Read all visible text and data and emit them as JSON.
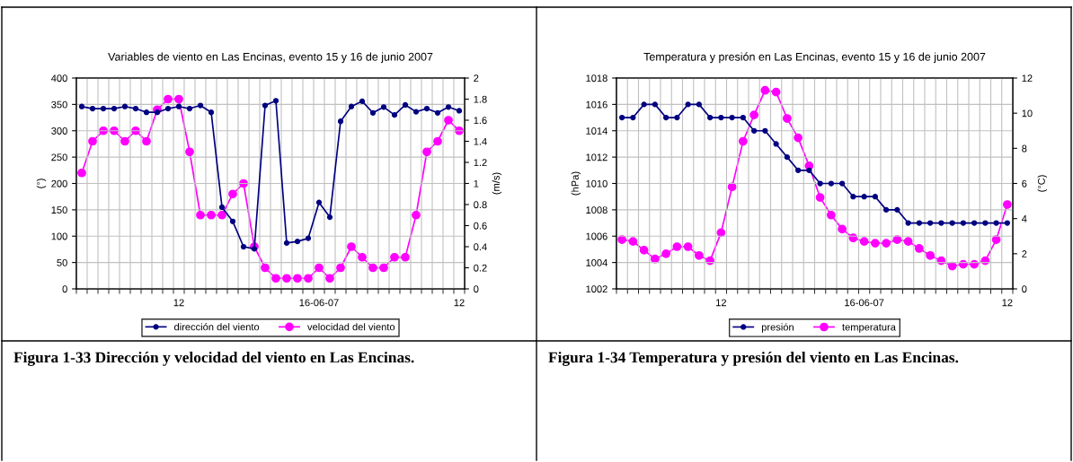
{
  "chart_data": [
    {
      "type": "line",
      "title": "Variables de viento en Las Encinas, evento 15 y 16 de junio 2007",
      "ylabel": "(°)",
      "y2label": "(m/s)",
      "categories": [
        null,
        null,
        null,
        null,
        null,
        null,
        null,
        null,
        null,
        "12",
        null,
        null,
        null,
        null,
        null,
        null,
        null,
        null,
        null,
        null,
        null,
        null,
        "16-06-07",
        null,
        null,
        null,
        null,
        null,
        null,
        null,
        null,
        null,
        null,
        null,
        null,
        "12"
      ],
      "series": [
        {
          "name": "dirección del viento",
          "color": "#000080",
          "values": [
            346,
            342,
            342,
            342,
            346,
            342,
            335,
            335,
            342,
            346,
            342,
            348,
            335,
            155,
            128,
            80,
            76,
            348,
            357,
            87,
            90,
            96,
            164,
            136,
            318,
            346,
            356,
            334,
            345,
            330,
            349,
            336,
            342,
            334,
            345,
            338
          ]
        },
        {
          "name": "velocidad del viento",
          "color": "#ff00ff",
          "axis": "y2",
          "values": [
            1.1,
            1.4,
            1.5,
            1.5,
            1.4,
            1.5,
            1.4,
            1.7,
            1.8,
            1.8,
            1.3,
            0.7,
            0.7,
            0.7,
            0.9,
            1.0,
            0.4,
            0.2,
            0.1,
            0.1,
            0.1,
            0.1,
            0.2,
            0.1,
            0.2,
            0.4,
            0.3,
            0.2,
            0.2,
            0.3,
            0.3,
            0.7,
            1.3,
            1.4,
            1.6,
            1.5
          ]
        }
      ],
      "ylim": [
        0,
        400
      ],
      "yticks": [
        0,
        50,
        100,
        150,
        200,
        250,
        300,
        350,
        400
      ],
      "y2lim": [
        0,
        2
      ],
      "y2ticks": [
        0,
        0.2,
        0.4,
        0.6,
        0.8,
        1,
        1.2,
        1.4,
        1.6,
        1.8,
        2
      ],
      "grid": true,
      "legend": "bottom",
      "marker": "circle",
      "line_style": "solid",
      "annotations": [
        "Figura 1-33 Dirección y velocidad del viento en Las Encinas."
      ]
    },
    {
      "type": "line",
      "title": "Temperatura y presión en Las Encinas, evento 15 y 16 de junio 2007",
      "ylabel": "(hPa)",
      "y2label": "(°C)",
      "categories": [
        null,
        null,
        null,
        null,
        null,
        null,
        null,
        null,
        null,
        "12",
        null,
        null,
        null,
        null,
        null,
        null,
        null,
        null,
        null,
        null,
        null,
        null,
        "16-06-07",
        null,
        null,
        null,
        null,
        null,
        null,
        null,
        null,
        null,
        null,
        null,
        null,
        "12"
      ],
      "series": [
        {
          "name": "presión",
          "color": "#000080",
          "values": [
            1015,
            1015,
            1016,
            1016,
            1015,
            1015,
            1016,
            1016,
            1015,
            1015,
            1015,
            1015,
            1014,
            1014,
            1013,
            1012,
            1011,
            1011,
            1010,
            1010,
            1010,
            1009,
            1009,
            1009,
            1008,
            1008,
            1007,
            1007,
            1007,
            1007,
            1007,
            1007,
            1007,
            1007,
            1007,
            1007
          ]
        },
        {
          "name": "temperatura",
          "color": "#ff00ff",
          "axis": "y2",
          "values": [
            2.8,
            2.7,
            2.2,
            1.7,
            2.0,
            2.4,
            2.4,
            1.9,
            1.6,
            3.2,
            5.8,
            8.4,
            9.9,
            11.3,
            11.2,
            9.7,
            8.6,
            7.0,
            5.2,
            4.2,
            3.4,
            2.9,
            2.7,
            2.6,
            2.6,
            2.8,
            2.7,
            2.3,
            1.9,
            1.6,
            1.3,
            1.4,
            1.4,
            1.6,
            2.8,
            4.8
          ]
        }
      ],
      "ylim": [
        1002,
        1018
      ],
      "yticks": [
        1002,
        1004,
        1006,
        1008,
        1010,
        1012,
        1014,
        1016,
        1018
      ],
      "y2lim": [
        0,
        12
      ],
      "y2ticks": [
        0,
        2,
        4,
        6,
        8,
        10,
        12
      ],
      "grid": true,
      "legend": "bottom",
      "marker": "circle",
      "line_style": "solid",
      "annotations": [
        "Figura 1-34 Temperatura y presión del viento en Las Encinas."
      ]
    }
  ]
}
